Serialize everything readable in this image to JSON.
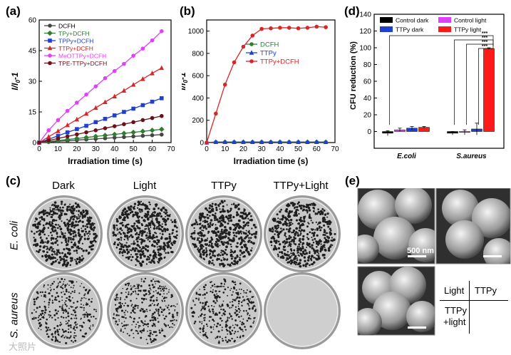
{
  "panels": {
    "a": "(a)",
    "b": "(b)",
    "c": "(c)",
    "d": "(d)",
    "e": "(e)"
  },
  "chart_data": [
    {
      "id": "a",
      "type": "line",
      "xlabel": "Irradiation time (s)",
      "ylabel": "I/I0-1",
      "xlim": [
        0,
        70
      ],
      "ylim": [
        0,
        60
      ],
      "xticks": [
        0,
        10,
        20,
        30,
        40,
        50,
        60,
        70
      ],
      "yticks": [
        0,
        15,
        30,
        45,
        60
      ],
      "legend_position": "top-left",
      "x": [
        0,
        5,
        10,
        15,
        20,
        25,
        30,
        35,
        40,
        45,
        50,
        55,
        60,
        65
      ],
      "series": [
        {
          "name": "DCFH",
          "color": "#444444",
          "marker": "circle",
          "values": [
            0,
            0.3,
            0.6,
            0.9,
            1.2,
            1.5,
            1.8,
            2.1,
            2.4,
            2.7,
            3.0,
            3.3,
            3.6,
            3.9
          ]
        },
        {
          "name": "TPy+DCFH",
          "color": "#2e7d32",
          "marker": "diamond",
          "values": [
            0,
            0.5,
            1.0,
            1.5,
            2.0,
            2.5,
            3.0,
            3.5,
            4.0,
            4.5,
            5.0,
            5.5,
            6.0,
            6.5
          ]
        },
        {
          "name": "TPPy+DCFH",
          "color": "#1f3fcf",
          "marker": "square",
          "values": [
            0,
            1.6,
            3.3,
            5.0,
            6.6,
            8.2,
            10.0,
            11.6,
            13.3,
            15.0,
            16.6,
            18.3,
            20.0,
            21.7
          ]
        },
        {
          "name": "TTPy+DCFH",
          "color": "#d62728",
          "marker": "triangle",
          "values": [
            0,
            2.8,
            5.6,
            8.5,
            11.3,
            14.1,
            17.0,
            19.8,
            22.6,
            25.4,
            28.3,
            31.1,
            33.9,
            36.5
          ]
        },
        {
          "name": "MeOTTPy+DCFH",
          "color": "#e040fb",
          "marker": "circle",
          "values": [
            0,
            6.0,
            11.0,
            15.5,
            19.5,
            23.5,
            27.5,
            31.5,
            35.0,
            38.5,
            42.5,
            46.0,
            50.0,
            54.5
          ]
        },
        {
          "name": "TPE-TTPy+DCFH",
          "color": "#6b0f1a",
          "marker": "circle",
          "values": [
            0,
            1.0,
            2.0,
            3.0,
            4.0,
            5.0,
            6.0,
            7.0,
            8.0,
            9.0,
            10.0,
            11.0,
            12.0,
            13.0
          ]
        }
      ]
    },
    {
      "id": "b",
      "type": "line",
      "xlabel": "Irradiation time (s)",
      "ylabel": "I/I0-1",
      "xlim": [
        0,
        70
      ],
      "ylim": [
        0,
        1100
      ],
      "xticks": [
        0,
        10,
        20,
        30,
        40,
        50,
        60,
        70
      ],
      "yticks": [
        0,
        200,
        400,
        600,
        800,
        1000
      ],
      "legend_position": "right",
      "x": [
        0,
        5,
        10,
        15,
        20,
        25,
        30,
        35,
        40,
        45,
        50,
        55,
        60,
        65
      ],
      "series": [
        {
          "name": "DCFH",
          "color": "#2e7d32",
          "marker": "circle",
          "values": [
            0,
            5,
            5,
            5,
            5,
            5,
            5,
            5,
            5,
            5,
            5,
            5,
            5,
            5
          ]
        },
        {
          "name": "TTPy",
          "color": "#1f3fcf",
          "marker": "triangle",
          "values": [
            0,
            5,
            5,
            5,
            5,
            5,
            5,
            5,
            5,
            5,
            5,
            5,
            5,
            5
          ]
        },
        {
          "name": "TTPy+DCFH",
          "color": "#d62728",
          "marker": "circle",
          "values": [
            0,
            260,
            520,
            720,
            860,
            960,
            1020,
            1025,
            1030,
            1030,
            1025,
            1030,
            1040,
            1035
          ]
        }
      ]
    },
    {
      "id": "d",
      "type": "bar",
      "xlabel": "",
      "ylabel": "CFU reduction (%)",
      "ylim": [
        -20,
        140
      ],
      "yticks": [
        0,
        20,
        40,
        60,
        80,
        100,
        120,
        140
      ],
      "categories": [
        "E.coli",
        "S.aureus"
      ],
      "legend_position": "top",
      "series": [
        {
          "name": "Control dark",
          "color": "#000000",
          "values": [
            -2,
            -2
          ],
          "errors": [
            3,
            2
          ]
        },
        {
          "name": "Control light",
          "color": "#e040fb",
          "values": [
            2,
            -1
          ],
          "errors": [
            2,
            3
          ]
        },
        {
          "name": "TTPy dark",
          "color": "#1f3fcf",
          "values": [
            4,
            3
          ],
          "errors": [
            2,
            7
          ]
        },
        {
          "name": "TTPy light",
          "color": "#ff1a1a",
          "values": [
            5,
            99
          ],
          "errors": [
            1,
            1
          ]
        }
      ],
      "significance": "***"
    }
  ],
  "plates": {
    "columns": [
      "Dark",
      "Light",
      "TTPy",
      "TTPy+Light"
    ],
    "rows": [
      "E. coli",
      "S. aureus"
    ]
  },
  "sem": {
    "scale_label": "500 nm",
    "grid": {
      "top_left": "Light",
      "top_right": "TTPy",
      "bottom_left_1": "TTPy",
      "bottom_left_2": "+light"
    }
  },
  "watermark": "大照片"
}
